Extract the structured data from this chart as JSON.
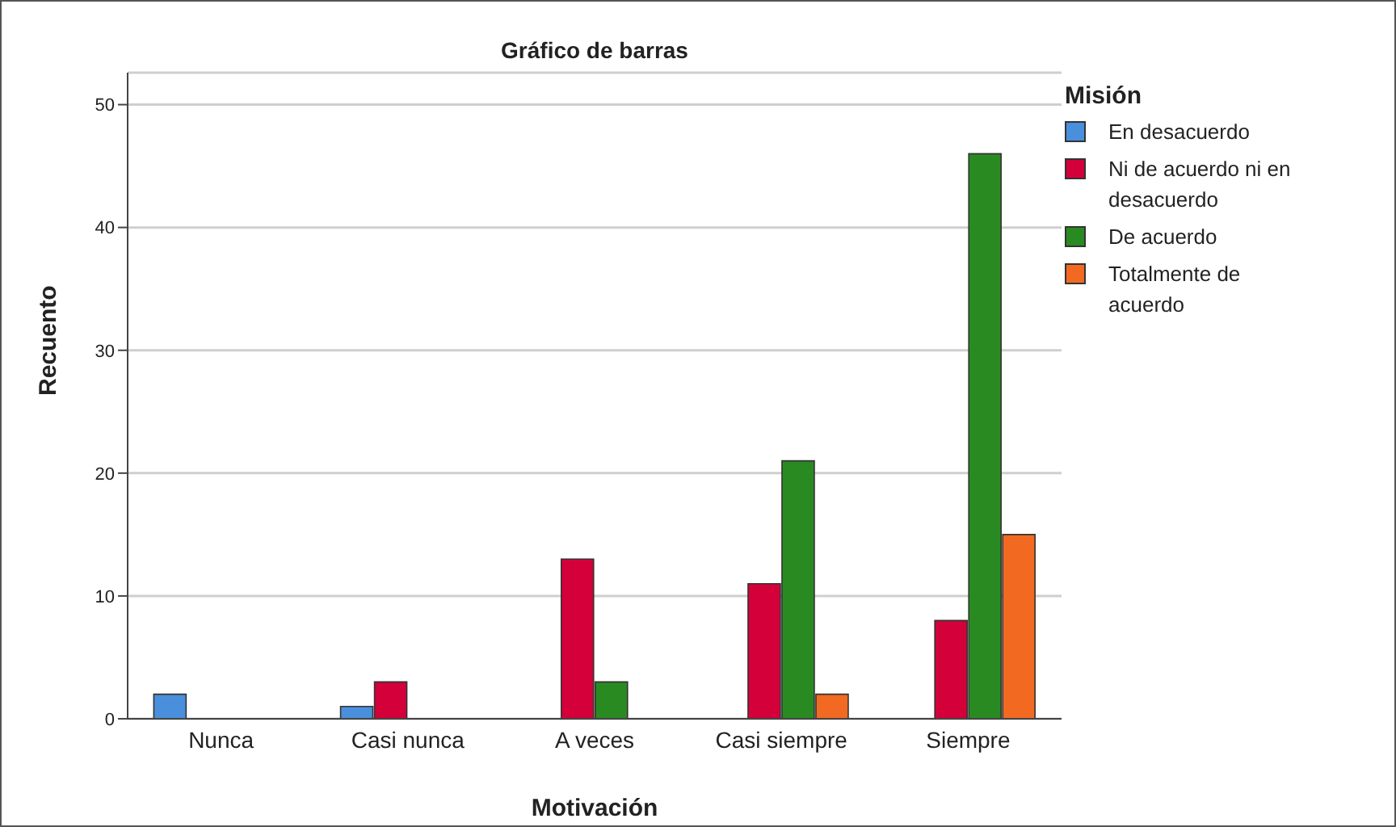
{
  "chart_data": {
    "type": "bar",
    "title": "Gráfico de barras",
    "xlabel": "Motivación",
    "ylabel": "Recuento",
    "legend_title": "Misión",
    "categories": [
      "Nunca",
      "Casi nunca",
      "A veces",
      "Casi siempre",
      "Siempre"
    ],
    "series": [
      {
        "name": "En desacuerdo",
        "color": "#4a8fdb",
        "values": [
          2,
          1,
          null,
          null,
          null
        ]
      },
      {
        "name": "Ni de acuerdo ni en desacuerdo",
        "color": "#d4003a",
        "values": [
          null,
          3,
          13,
          11,
          8
        ]
      },
      {
        "name": "De acuerdo",
        "color": "#2a8a22",
        "values": [
          null,
          null,
          3,
          21,
          46
        ]
      },
      {
        "name": "Totalmente de acuerdo",
        "color": "#f26a21",
        "values": [
          null,
          null,
          null,
          2,
          15
        ]
      }
    ],
    "ylim": [
      0,
      52.6
    ],
    "yticks": [
      0,
      10,
      20,
      30,
      40,
      50
    ],
    "grid": "y",
    "legend": "right"
  }
}
